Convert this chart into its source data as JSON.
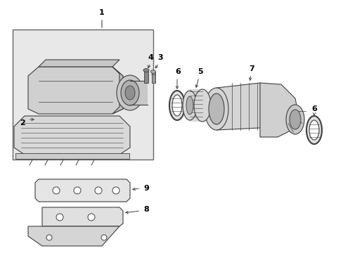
{
  "bg_color": "#ffffff",
  "line_color": "#404040",
  "label_color": "#000000",
  "box_bg": "#e8e8e8",
  "figsize": [
    4.89,
    3.6
  ],
  "dpi": 100
}
